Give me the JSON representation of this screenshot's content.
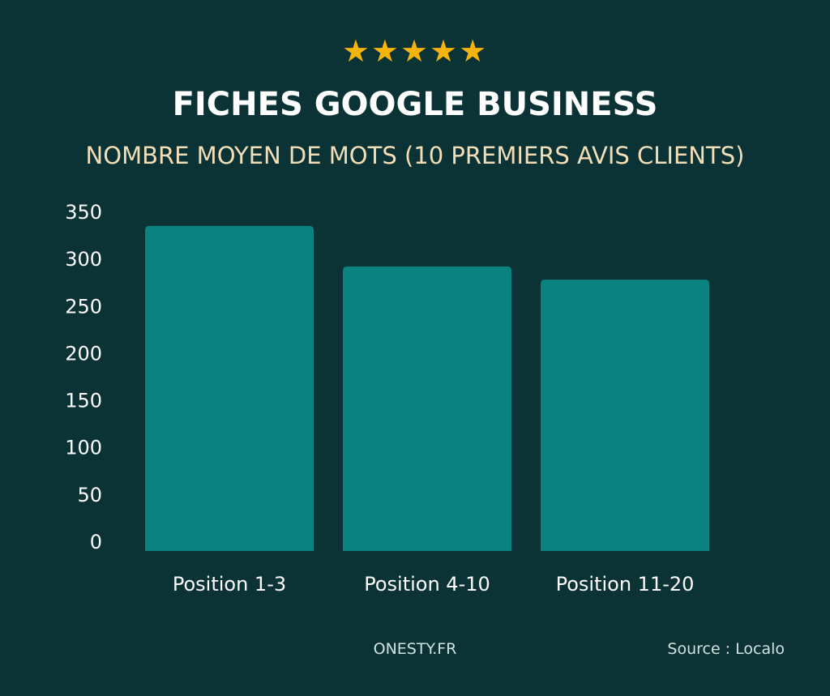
{
  "header": {
    "rating_stars": "★★★★★",
    "title": "FICHES GOOGLE BUSINESS",
    "subtitle": "NOMBRE MOYEN DE MOTS (10 PREMIERS AVIS CLIENTS)"
  },
  "chart_data": {
    "type": "bar",
    "title": "FICHES GOOGLE BUSINESS",
    "subtitle": "NOMBRE MOYEN DE MOTS (10 PREMIERS AVIS CLIENTS)",
    "categories": [
      "Position 1-3",
      "Position 4-10",
      "Position 11-20"
    ],
    "values": [
      345,
      302,
      288
    ],
    "xlabel": "",
    "ylabel": "",
    "ylim": [
      0,
      350
    ],
    "yticks": [
      0,
      50,
      100,
      150,
      200,
      250,
      300,
      350
    ],
    "grid": false,
    "legend": "none"
  },
  "footer": {
    "brand": "ONESTY.FR",
    "source": "Source : Localo"
  },
  "colors": {
    "background": "#0b3335",
    "bar": "#0a8280",
    "stars": "#f5b40b",
    "title": "#ffffff",
    "subtitle": "#f2dfb8",
    "axis_text": "#ffffff",
    "footer_text": "#cfe3df"
  }
}
